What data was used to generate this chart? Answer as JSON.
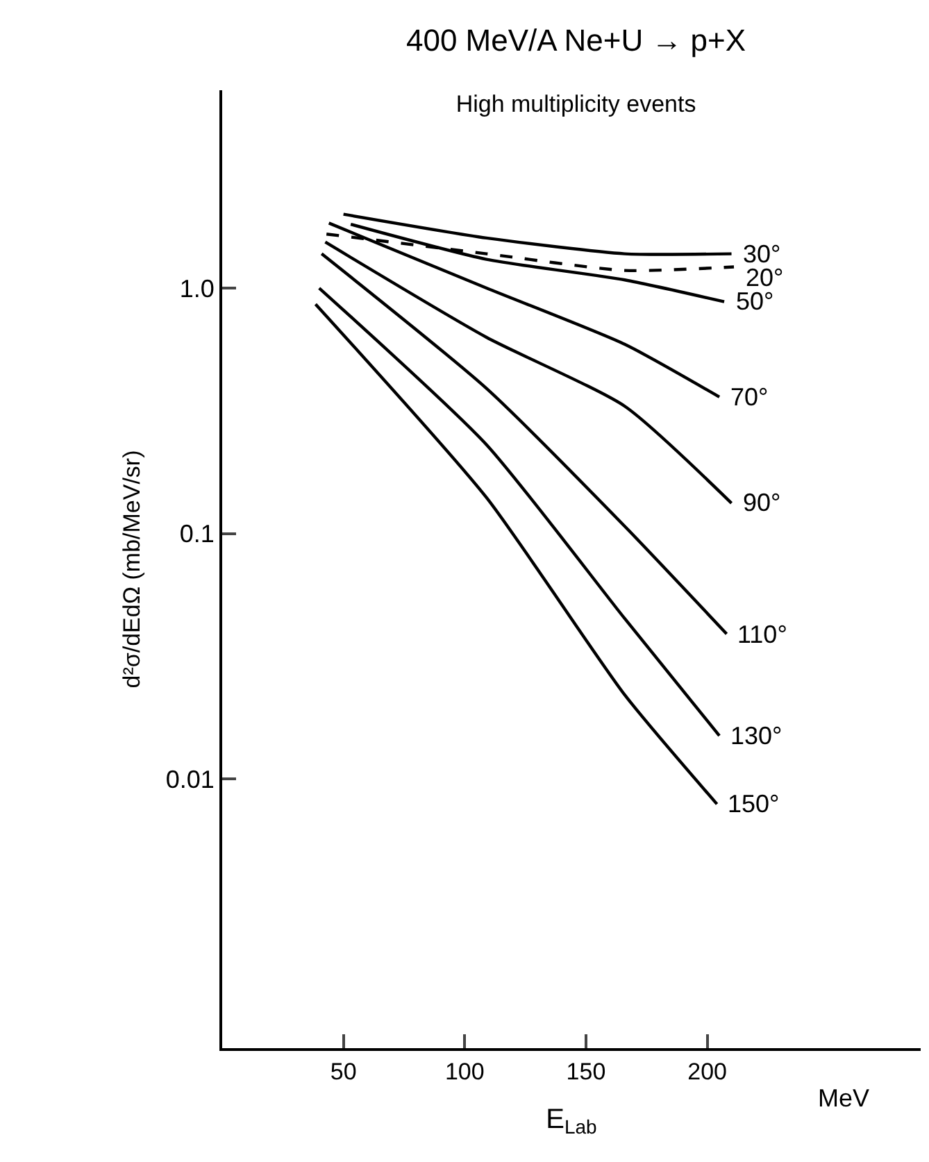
{
  "chart_data": {
    "type": "line",
    "title": "400 MeV/A Ne+U → p+X",
    "subtitle": "High multiplicity events",
    "xlabel": "E$_{Lab}$",
    "ylabel": "d²σ/dEdΩ (mb/MeV/sr)",
    "annotations": [
      "MeV"
    ],
    "log": true,
    "grid": false,
    "legend": false,
    "marker": "none",
    "line_style": "solid",
    "xlim": [
      0,
      288
    ],
    "xticks": [
      50,
      100,
      150,
      200
    ],
    "ylim": [
      0.0008,
      6.4
    ],
    "yticks": [
      {
        "value": 1,
        "label": "1.0"
      },
      0.1,
      0.01
    ],
    "series": [
      {
        "name": "30°",
        "color": "#000000",
        "x": [
          50,
          109,
          166,
          210
        ],
        "values": [
          2.0,
          1.6,
          1.38,
          1.38
        ]
      },
      {
        "name": "20°",
        "color": "#000000",
        "line_style": "dashed",
        "x": [
          43,
          109,
          166,
          211
        ],
        "values": [
          1.66,
          1.38,
          1.18,
          1.22
        ]
      },
      {
        "name": "50°",
        "color": "#000000",
        "x": [
          53,
          109,
          166,
          207
        ],
        "values": [
          1.82,
          1.31,
          1.08,
          0.88
        ]
      },
      {
        "name": "70°",
        "color": "#000000",
        "x": [
          44,
          109,
          166,
          205
        ],
        "values": [
          1.84,
          1.0,
          0.59,
          0.36
        ]
      },
      {
        "name": "90°",
        "color": "#000000",
        "x": [
          42.5,
          109,
          166,
          210
        ],
        "values": [
          1.54,
          0.63,
          0.33,
          0.133
        ]
      },
      {
        "name": "110°",
        "color": "#000000",
        "x": [
          41,
          109,
          166,
          208
        ],
        "values": [
          1.38,
          0.39,
          0.107,
          0.039
        ]
      },
      {
        "name": "130°",
        "color": "#000000",
        "x": [
          40,
          109,
          166,
          205
        ],
        "values": [
          1.0,
          0.23,
          0.045,
          0.015
        ]
      },
      {
        "name": "150°",
        "color": "#000000",
        "x": [
          38.5,
          109,
          166,
          204
        ],
        "values": [
          0.86,
          0.14,
          0.022,
          0.0079
        ]
      }
    ]
  }
}
